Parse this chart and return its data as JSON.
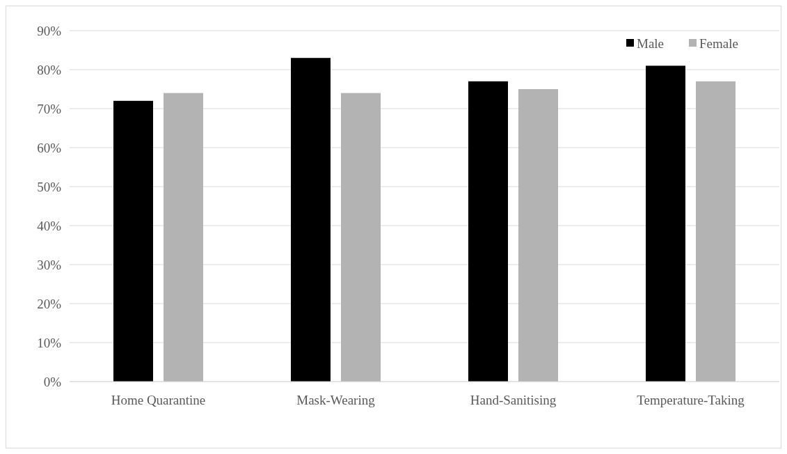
{
  "chart_data": {
    "type": "bar",
    "categories": [
      "Home Quarantine",
      "Mask-Wearing",
      "Hand-Sanitising",
      "Temperature-Taking"
    ],
    "series": [
      {
        "name": "Male",
        "color": "#000000",
        "values": [
          72,
          83,
          77,
          81
        ]
      },
      {
        "name": "Female",
        "color": "#b3b3b3",
        "values": [
          74,
          74,
          75,
          77
        ]
      }
    ],
    "ylim": [
      0,
      90
    ],
    "yticks": [
      {
        "value": 0,
        "label": "0%"
      },
      {
        "value": 10,
        "label": "10%"
      },
      {
        "value": 20,
        "label": "20%"
      },
      {
        "value": 30,
        "label": "30%"
      },
      {
        "value": 40,
        "label": "40%"
      },
      {
        "value": 50,
        "label": "50%"
      },
      {
        "value": 60,
        "label": "60%"
      },
      {
        "value": 70,
        "label": "70%"
      },
      {
        "value": 80,
        "label": "80%"
      },
      {
        "value": 90,
        "label": "90%"
      }
    ],
    "grid": "y",
    "legend": "top right"
  }
}
